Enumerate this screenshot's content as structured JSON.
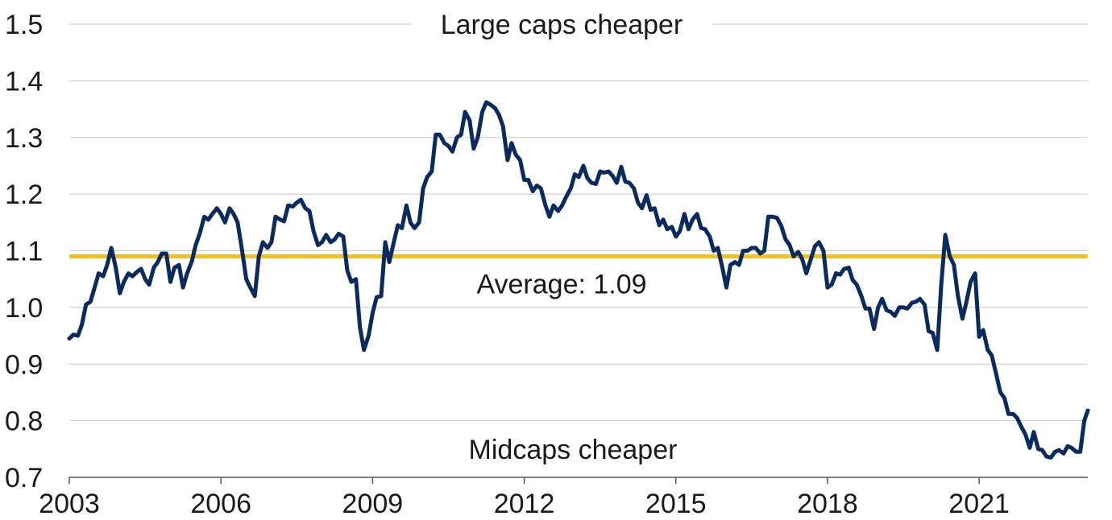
{
  "chart_data": {
    "type": "line",
    "title": "",
    "xlabel": "",
    "ylabel": "",
    "xlim": [
      2003.0,
      2023.15
    ],
    "ylim": [
      0.7,
      1.5
    ],
    "grid": true,
    "legend": "none",
    "x_ticks": [
      2003,
      2006,
      2009,
      2012,
      2015,
      2018,
      2021
    ],
    "x_tick_labels": [
      "2003",
      "2006",
      "2009",
      "2012",
      "2015",
      "2018",
      "2021"
    ],
    "y_ticks": [
      0.7,
      0.8,
      0.9,
      1.0,
      1.1,
      1.2,
      1.3,
      1.4,
      1.5
    ],
    "y_tick_labels": [
      "0.7",
      "0.8",
      "0.9",
      "1.0",
      "1.1",
      "1.2",
      "1.3",
      "1.4",
      "1.5"
    ],
    "series": [
      {
        "color": "#0b2a5e",
        "x": [
          2003.0,
          2003.08,
          2003.17,
          2003.25,
          2003.33,
          2003.42,
          2003.5,
          2003.58,
          2003.67,
          2003.75,
          2003.83,
          2003.92,
          2004.0,
          2004.08,
          2004.17,
          2004.25,
          2004.33,
          2004.42,
          2004.5,
          2004.58,
          2004.67,
          2004.75,
          2004.83,
          2004.92,
          2005.0,
          2005.08,
          2005.17,
          2005.25,
          2005.33,
          2005.42,
          2005.5,
          2005.58,
          2005.67,
          2005.75,
          2005.83,
          2005.92,
          2006.0,
          2006.08,
          2006.17,
          2006.25,
          2006.33,
          2006.42,
          2006.5,
          2006.58,
          2006.67,
          2006.75,
          2006.83,
          2006.92,
          2007.0,
          2007.08,
          2007.17,
          2007.25,
          2007.33,
          2007.42,
          2007.5,
          2007.58,
          2007.67,
          2007.75,
          2007.83,
          2007.92,
          2008.0,
          2008.08,
          2008.17,
          2008.25,
          2008.33,
          2008.42,
          2008.5,
          2008.58,
          2008.67,
          2008.75,
          2008.83,
          2008.92,
          2009.0,
          2009.08,
          2009.17,
          2009.25,
          2009.33,
          2009.42,
          2009.5,
          2009.58,
          2009.67,
          2009.75,
          2009.83,
          2009.92,
          2010.0,
          2010.08,
          2010.17,
          2010.25,
          2010.33,
          2010.42,
          2010.5,
          2010.58,
          2010.67,
          2010.75,
          2010.83,
          2010.92,
          2011.0,
          2011.08,
          2011.17,
          2011.25,
          2011.33,
          2011.42,
          2011.5,
          2011.58,
          2011.67,
          2011.75,
          2011.83,
          2011.92,
          2012.0,
          2012.08,
          2012.17,
          2012.25,
          2012.33,
          2012.42,
          2012.5,
          2012.58,
          2012.67,
          2012.75,
          2012.83,
          2012.92,
          2013.0,
          2013.08,
          2013.17,
          2013.25,
          2013.33,
          2013.42,
          2013.5,
          2013.58,
          2013.67,
          2013.75,
          2013.83,
          2013.92,
          2014.0,
          2014.08,
          2014.17,
          2014.25,
          2014.33,
          2014.42,
          2014.5,
          2014.58,
          2014.67,
          2014.75,
          2014.83,
          2014.92,
          2015.0,
          2015.08,
          2015.17,
          2015.25,
          2015.33,
          2015.42,
          2015.5,
          2015.58,
          2015.67,
          2015.75,
          2015.83,
          2015.92,
          2016.0,
          2016.08,
          2016.17,
          2016.25,
          2016.33,
          2016.42,
          2016.5,
          2016.58,
          2016.67,
          2016.75,
          2016.83,
          2016.92,
          2017.0,
          2017.08,
          2017.17,
          2017.25,
          2017.33,
          2017.42,
          2017.5,
          2017.58,
          2017.67,
          2017.75,
          2017.83,
          2017.92,
          2018.0,
          2018.08,
          2018.17,
          2018.25,
          2018.33,
          2018.42,
          2018.5,
          2018.58,
          2018.67,
          2018.75,
          2018.83,
          2018.92,
          2019.0,
          2019.08,
          2019.17,
          2019.25,
          2019.33,
          2019.42,
          2019.5,
          2019.58,
          2019.67,
          2019.75,
          2019.83,
          2019.92,
          2020.0,
          2020.08,
          2020.17,
          2020.25,
          2020.33,
          2020.42,
          2020.5,
          2020.58,
          2020.67,
          2020.75,
          2020.83,
          2020.92,
          2021.0,
          2021.08,
          2021.17,
          2021.25,
          2021.33,
          2021.42,
          2021.5,
          2021.58,
          2021.67,
          2021.75,
          2021.83,
          2021.92,
          2022.0,
          2022.08,
          2022.17,
          2022.25,
          2022.33,
          2022.42,
          2022.5,
          2022.58,
          2022.67,
          2022.75,
          2022.83,
          2022.92,
          2023.0,
          2023.08,
          2023.15
        ],
        "y": [
          0.945,
          0.952,
          0.95,
          0.97,
          1.005,
          1.01,
          1.035,
          1.06,
          1.055,
          1.075,
          1.105,
          1.07,
          1.025,
          1.045,
          1.06,
          1.055,
          1.062,
          1.068,
          1.05,
          1.04,
          1.07,
          1.08,
          1.095,
          1.095,
          1.045,
          1.07,
          1.075,
          1.035,
          1.06,
          1.08,
          1.11,
          1.13,
          1.16,
          1.155,
          1.165,
          1.175,
          1.165,
          1.15,
          1.175,
          1.165,
          1.15,
          1.1,
          1.05,
          1.035,
          1.02,
          1.09,
          1.115,
          1.105,
          1.115,
          1.16,
          1.155,
          1.152,
          1.18,
          1.178,
          1.185,
          1.19,
          1.175,
          1.17,
          1.135,
          1.11,
          1.115,
          1.128,
          1.115,
          1.12,
          1.13,
          1.125,
          1.065,
          1.045,
          1.05,
          0.965,
          0.925,
          0.95,
          0.99,
          1.018,
          1.02,
          1.115,
          1.08,
          1.115,
          1.145,
          1.14,
          1.18,
          1.15,
          1.14,
          1.15,
          1.21,
          1.23,
          1.24,
          1.305,
          1.305,
          1.29,
          1.285,
          1.275,
          1.3,
          1.305,
          1.345,
          1.33,
          1.28,
          1.3,
          1.345,
          1.362,
          1.358,
          1.352,
          1.34,
          1.32,
          1.26,
          1.29,
          1.27,
          1.26,
          1.225,
          1.225,
          1.205,
          1.215,
          1.21,
          1.18,
          1.16,
          1.18,
          1.17,
          1.18,
          1.195,
          1.21,
          1.235,
          1.23,
          1.25,
          1.228,
          1.22,
          1.218,
          1.24,
          1.238,
          1.24,
          1.232,
          1.22,
          1.248,
          1.222,
          1.22,
          1.21,
          1.185,
          1.175,
          1.198,
          1.172,
          1.175,
          1.145,
          1.155,
          1.138,
          1.142,
          1.125,
          1.135,
          1.165,
          1.138,
          1.155,
          1.165,
          1.14,
          1.138,
          1.125,
          1.1,
          1.105,
          1.07,
          1.035,
          1.075,
          1.08,
          1.075,
          1.1,
          1.1,
          1.105,
          1.105,
          1.095,
          1.1,
          1.16,
          1.16,
          1.158,
          1.145,
          1.12,
          1.11,
          1.09,
          1.098,
          1.085,
          1.06,
          1.085,
          1.108,
          1.115,
          1.1,
          1.035,
          1.04,
          1.06,
          1.058,
          1.068,
          1.07,
          1.048,
          1.04,
          1.02,
          0.998,
          0.998,
          0.962,
          1.0,
          1.015,
          0.995,
          0.992,
          0.985,
          1.0,
          1.0,
          0.998,
          1.008,
          1.01,
          1.015,
          1.005,
          0.958,
          0.955,
          0.925,
          1.04,
          1.128,
          1.09,
          1.075,
          1.02,
          0.98,
          1.01,
          1.045,
          1.06,
          0.948,
          0.96,
          0.925,
          0.915,
          0.885,
          0.85,
          0.84,
          0.812,
          0.812,
          0.805,
          0.79,
          0.775,
          0.752,
          0.78,
          0.75,
          0.748,
          0.737,
          0.735,
          0.745,
          0.748,
          0.742,
          0.755,
          0.752,
          0.745,
          0.745,
          0.8,
          0.818
        ]
      }
    ],
    "reference_line": {
      "y": 1.09,
      "label": "Average: 1.09",
      "color": "#f2c01f"
    },
    "annotations": {
      "top": "Large caps cheaper",
      "bottom": "Midcaps cheaper"
    }
  }
}
